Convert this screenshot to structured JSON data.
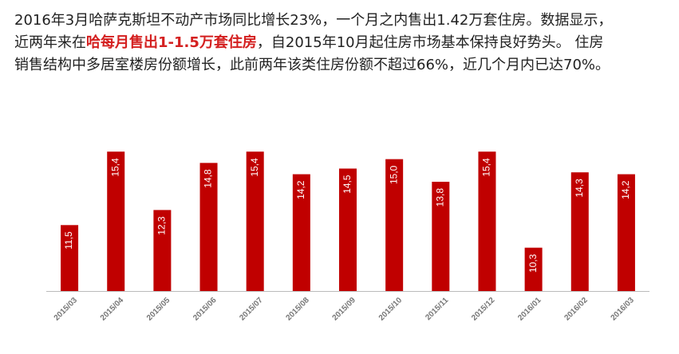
{
  "article": {
    "line1": "2016年3月哈萨克斯坦不动产市场同比增长23%，一个月之内售出1.42万套住房。数据显示，",
    "line2_start": "近两年来在",
    "highlight": "哈每月售出1-1.5万套住房",
    "line2_end": "，自2015年10月起住房市场基本保持良好势头。 住房",
    "line3": "销售结构中多居室楼房份额增长，此前两年该类住房份额不超过66%，近几个月内已达70%。"
  },
  "chart_data": {
    "type": "bar",
    "categories": [
      "2015/03",
      "2015/04",
      "2015/05",
      "2015/06",
      "2015/07",
      "2015/08",
      "2015/09",
      "2015/10",
      "2015/11",
      "2015/12",
      "2016/01",
      "2016/02",
      "2016/03"
    ],
    "values": [
      11.5,
      15.4,
      12.3,
      14.8,
      15.4,
      14.2,
      14.5,
      15.0,
      13.8,
      15.4,
      10.3,
      14.3,
      14.2
    ],
    "value_labels": [
      "11,5",
      "15,4",
      "12,3",
      "14,8",
      "15,4",
      "14,2",
      "14,5",
      "15,0",
      "13,8",
      "15,4",
      "10,3",
      "14,3",
      "14,2"
    ],
    "color": "#c00000",
    "ylim": [
      8,
      16
    ]
  }
}
